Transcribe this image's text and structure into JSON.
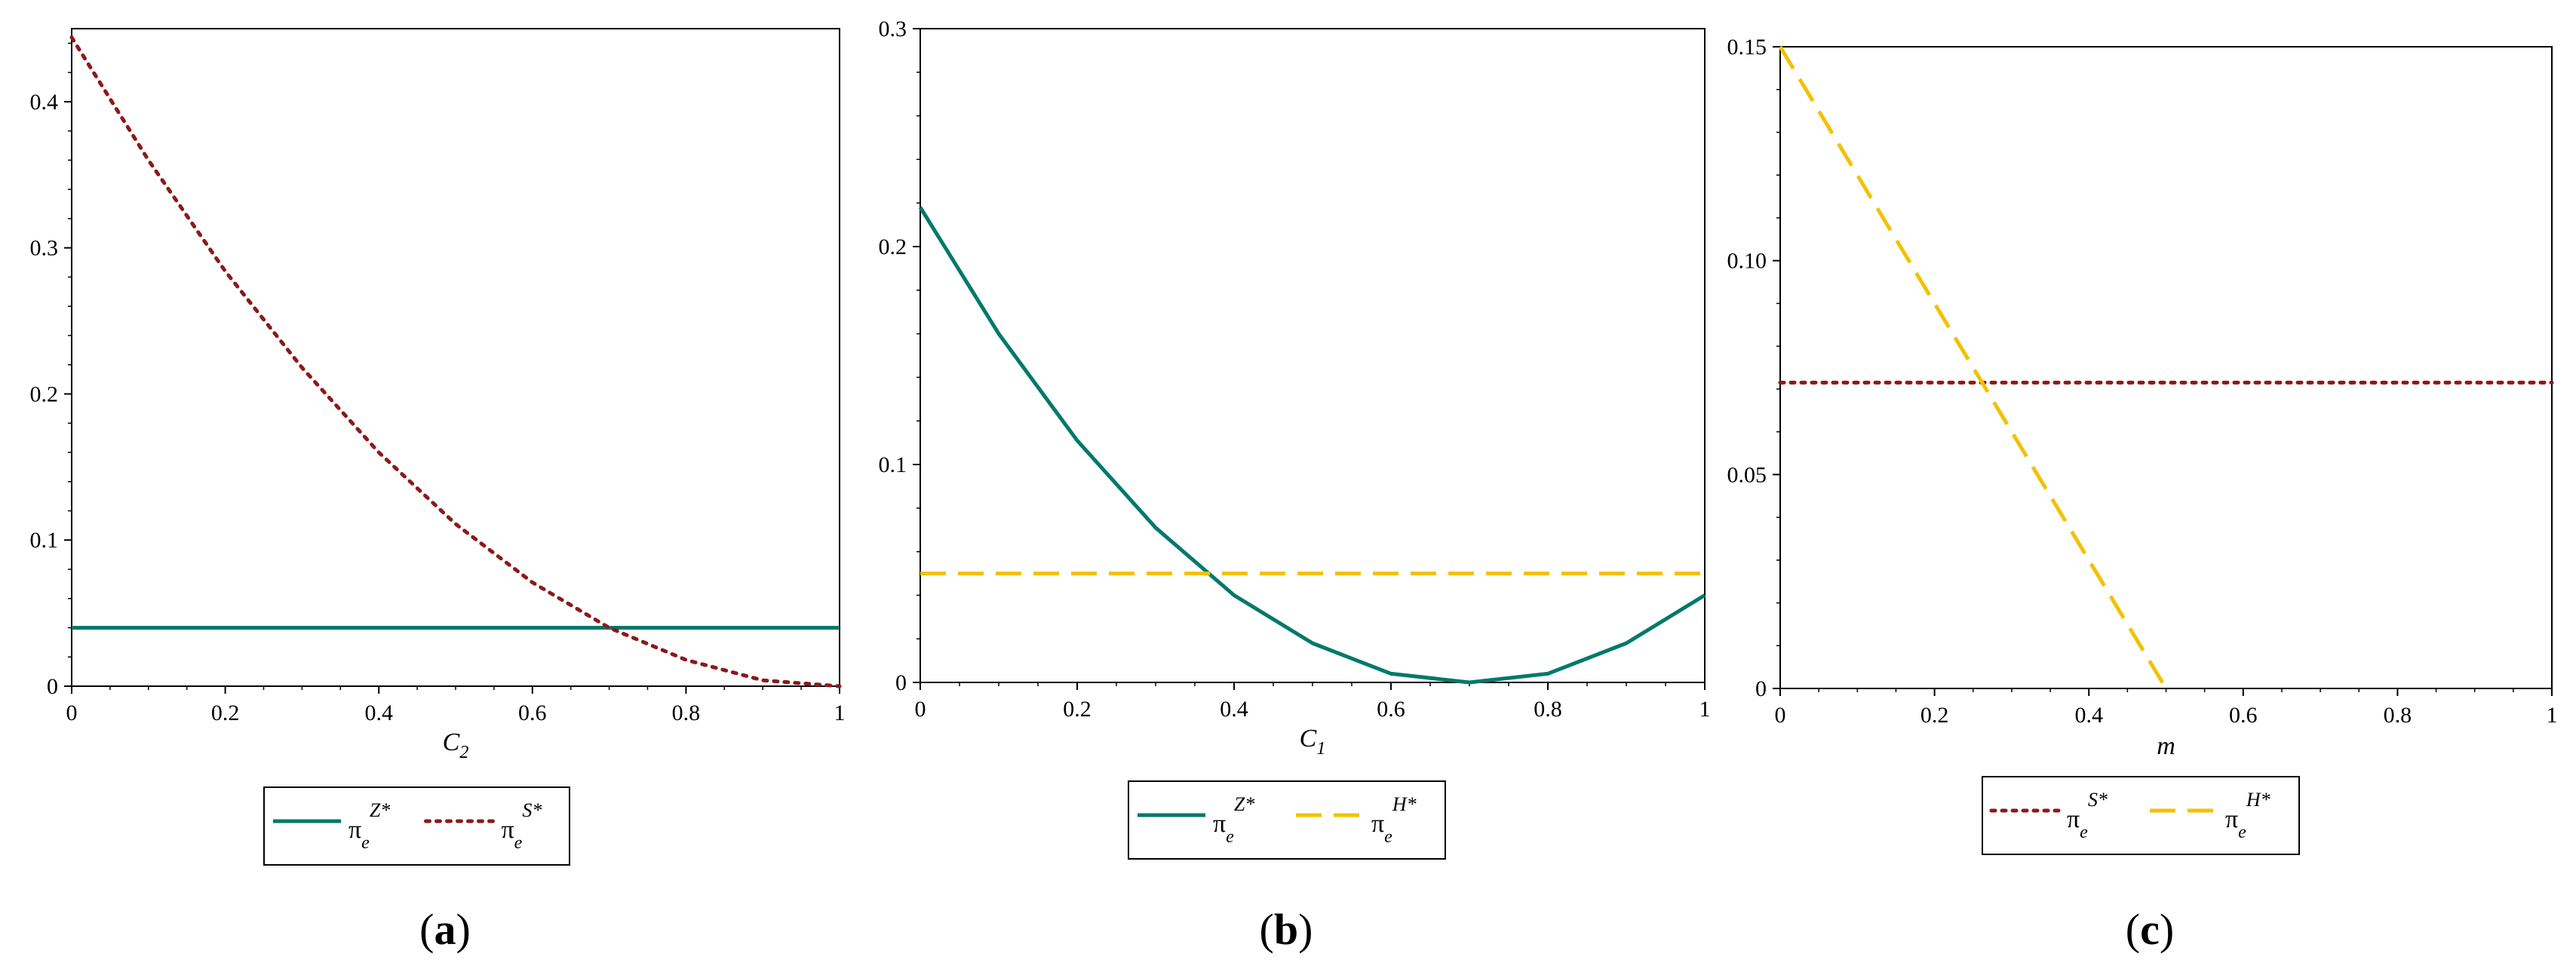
{
  "chart_data": [
    {
      "type": "line",
      "panel_label": "a",
      "xlabel": "C",
      "xlabel_sub": "2",
      "ylabel": "",
      "xlim": [
        0,
        1
      ],
      "ylim": [
        0,
        0.45
      ],
      "xticks": [
        0,
        0.2,
        0.4,
        0.6,
        0.8,
        1
      ],
      "xtick_labels": [
        "0",
        "0.2",
        "0.4",
        "0.6",
        "0.8",
        "1"
      ],
      "yticks": [
        0,
        0.1,
        0.2,
        0.3,
        0.4
      ],
      "ytick_labels": [
        "0",
        "0.1",
        "0.2",
        "0.3",
        "0.4"
      ],
      "legend_position": "bottom",
      "series": [
        {
          "name": "π_e^{Z*}",
          "legend": {
            "base": "π",
            "sub": "e",
            "sup": "Z*"
          },
          "color": "#00796b",
          "style": "solid",
          "x": [
            0,
            1
          ],
          "y": [
            0.04,
            0.04
          ]
        },
        {
          "name": "π_e^{S*}",
          "legend": {
            "base": "π",
            "sub": "e",
            "sup": "S*"
          },
          "color": "#8b1a1a",
          "style": "dotted",
          "x": [
            0,
            0.1,
            0.2,
            0.3,
            0.4,
            0.5,
            0.6,
            0.7,
            0.8,
            0.9,
            1.0
          ],
          "y": [
            0.444,
            0.36,
            0.284,
            0.218,
            0.16,
            0.111,
            0.071,
            0.04,
            0.018,
            0.004,
            0
          ]
        }
      ]
    },
    {
      "type": "line",
      "panel_label": "b",
      "xlabel": "C",
      "xlabel_sub": "1",
      "ylabel": "",
      "xlim": [
        0,
        1
      ],
      "ylim": [
        0,
        0.3
      ],
      "xticks": [
        0,
        0.2,
        0.4,
        0.6,
        0.8,
        1
      ],
      "xtick_labels": [
        "0",
        "0.2",
        "0.4",
        "0.6",
        "0.8",
        "1"
      ],
      "yticks": [
        0,
        0.1,
        0.2,
        0.3
      ],
      "ytick_labels": [
        "0",
        "0.1",
        "0.2",
        "0.3"
      ],
      "legend_position": "bottom",
      "series": [
        {
          "name": "π_e^{Z*}",
          "legend": {
            "base": "π",
            "sub": "e",
            "sup": "Z*"
          },
          "color": "#00796b",
          "style": "solid",
          "x": [
            0,
            0.1,
            0.2,
            0.3,
            0.4,
            0.5,
            0.6,
            0.7,
            0.8,
            0.9,
            1.0
          ],
          "y": [
            0.218,
            0.16,
            0.111,
            0.071,
            0.04,
            0.018,
            0.004,
            0,
            0.004,
            0.018,
            0.04
          ]
        },
        {
          "name": "π_e^{H*}",
          "legend": {
            "base": "π",
            "sub": "e",
            "sup": "H*"
          },
          "color": "#f2c200",
          "style": "dashed",
          "x": [
            0,
            1
          ],
          "y": [
            0.05,
            0.05
          ]
        }
      ]
    },
    {
      "type": "line",
      "panel_label": "c",
      "xlabel": "m",
      "xlabel_sub": "",
      "ylabel": "",
      "xlim": [
        0,
        1
      ],
      "ylim": [
        0,
        0.15
      ],
      "xticks": [
        0,
        0.2,
        0.4,
        0.6,
        0.8,
        1
      ],
      "xtick_labels": [
        "0",
        "0.2",
        "0.4",
        "0.6",
        "0.8",
        "1"
      ],
      "yticks": [
        0,
        0.05,
        0.1,
        0.15
      ],
      "ytick_labels": [
        "0",
        "0.05",
        "0.10",
        "0.15"
      ],
      "legend_position": "bottom",
      "series": [
        {
          "name": "π_e^{S*}",
          "legend": {
            "base": "π",
            "sub": "e",
            "sup": "S*"
          },
          "color": "#8b1a1a",
          "style": "dotted",
          "x": [
            0,
            1
          ],
          "y": [
            0.0715,
            0.0715
          ]
        },
        {
          "name": "π_e^{H*}",
          "legend": {
            "base": "π",
            "sub": "e",
            "sup": "H*"
          },
          "color": "#f2c200",
          "style": "dashed",
          "x": [
            0,
            0.5
          ],
          "y": [
            0.15,
            0
          ]
        }
      ]
    }
  ]
}
